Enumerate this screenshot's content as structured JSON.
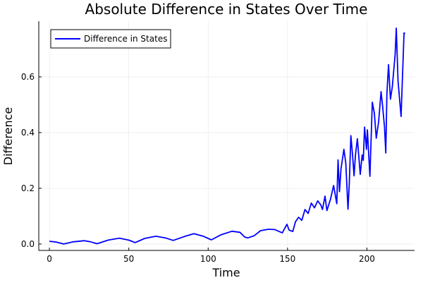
{
  "chart_data": {
    "type": "line",
    "title": "Absolute Difference in States Over Time",
    "xlabel": "Time",
    "ylabel": "Difference",
    "xlim": [
      -6.7,
      230
    ],
    "ylim": [
      -0.023,
      0.8
    ],
    "xticks": [
      0,
      50,
      100,
      150,
      200
    ],
    "xtick_labels": [
      "0",
      "50",
      "100",
      "150",
      "200"
    ],
    "yticks": [
      0,
      0.2,
      0.4,
      0.6
    ],
    "ytick_labels": [
      "0.0",
      "0.2",
      "0.4",
      "0.6"
    ],
    "grid": true,
    "legend": "top-left",
    "series": [
      {
        "name": "Difference in States",
        "color": "#0000ff",
        "x": [
          0,
          4.5,
          9,
          15,
          22,
          26,
          30,
          37,
          44,
          50,
          54,
          60,
          67,
          73,
          78,
          85,
          91,
          97,
          102,
          108,
          115,
          120,
          123,
          125,
          129,
          133,
          137.8,
          142,
          146.7,
          149.6,
          151,
          153.3,
          155,
          157,
          159,
          161,
          163,
          165,
          167,
          169,
          171,
          172,
          173.6,
          174.8,
          177,
          179,
          181,
          181.8,
          182.7,
          183.7,
          185.5,
          186.7,
          188.1,
          188.9,
          189.9,
          191,
          191.9,
          192.8,
          194,
          195.8,
          197,
          197.7,
          198.5,
          199.7,
          200.3,
          201.9,
          203.4,
          204.7,
          205.9,
          207.4,
          208.9,
          209.9,
          211.1,
          211.9,
          212.6,
          213.6,
          214.8,
          216,
          217.8,
          218.5,
          219.6,
          221.5,
          223.4,
          224
        ],
        "y": [
          0.01,
          0.007,
          0.0,
          0.008,
          0.012,
          0.008,
          0.001,
          0.014,
          0.021,
          0.014,
          0.005,
          0.02,
          0.028,
          0.022,
          0.013,
          0.027,
          0.037,
          0.028,
          0.015,
          0.033,
          0.046,
          0.042,
          0.025,
          0.022,
          0.03,
          0.048,
          0.053,
          0.052,
          0.04,
          0.071,
          0.05,
          0.045,
          0.08,
          0.096,
          0.085,
          0.124,
          0.11,
          0.147,
          0.13,
          0.155,
          0.14,
          0.124,
          0.172,
          0.12,
          0.16,
          0.21,
          0.145,
          0.302,
          0.188,
          0.27,
          0.34,
          0.29,
          0.125,
          0.22,
          0.389,
          0.315,
          0.245,
          0.32,
          0.378,
          0.25,
          0.32,
          0.3,
          0.42,
          0.34,
          0.41,
          0.243,
          0.509,
          0.47,
          0.38,
          0.44,
          0.547,
          0.495,
          0.42,
          0.327,
          0.54,
          0.644,
          0.52,
          0.565,
          0.682,
          0.775,
          0.585,
          0.458,
          0.758,
          0.755
        ]
      }
    ]
  }
}
